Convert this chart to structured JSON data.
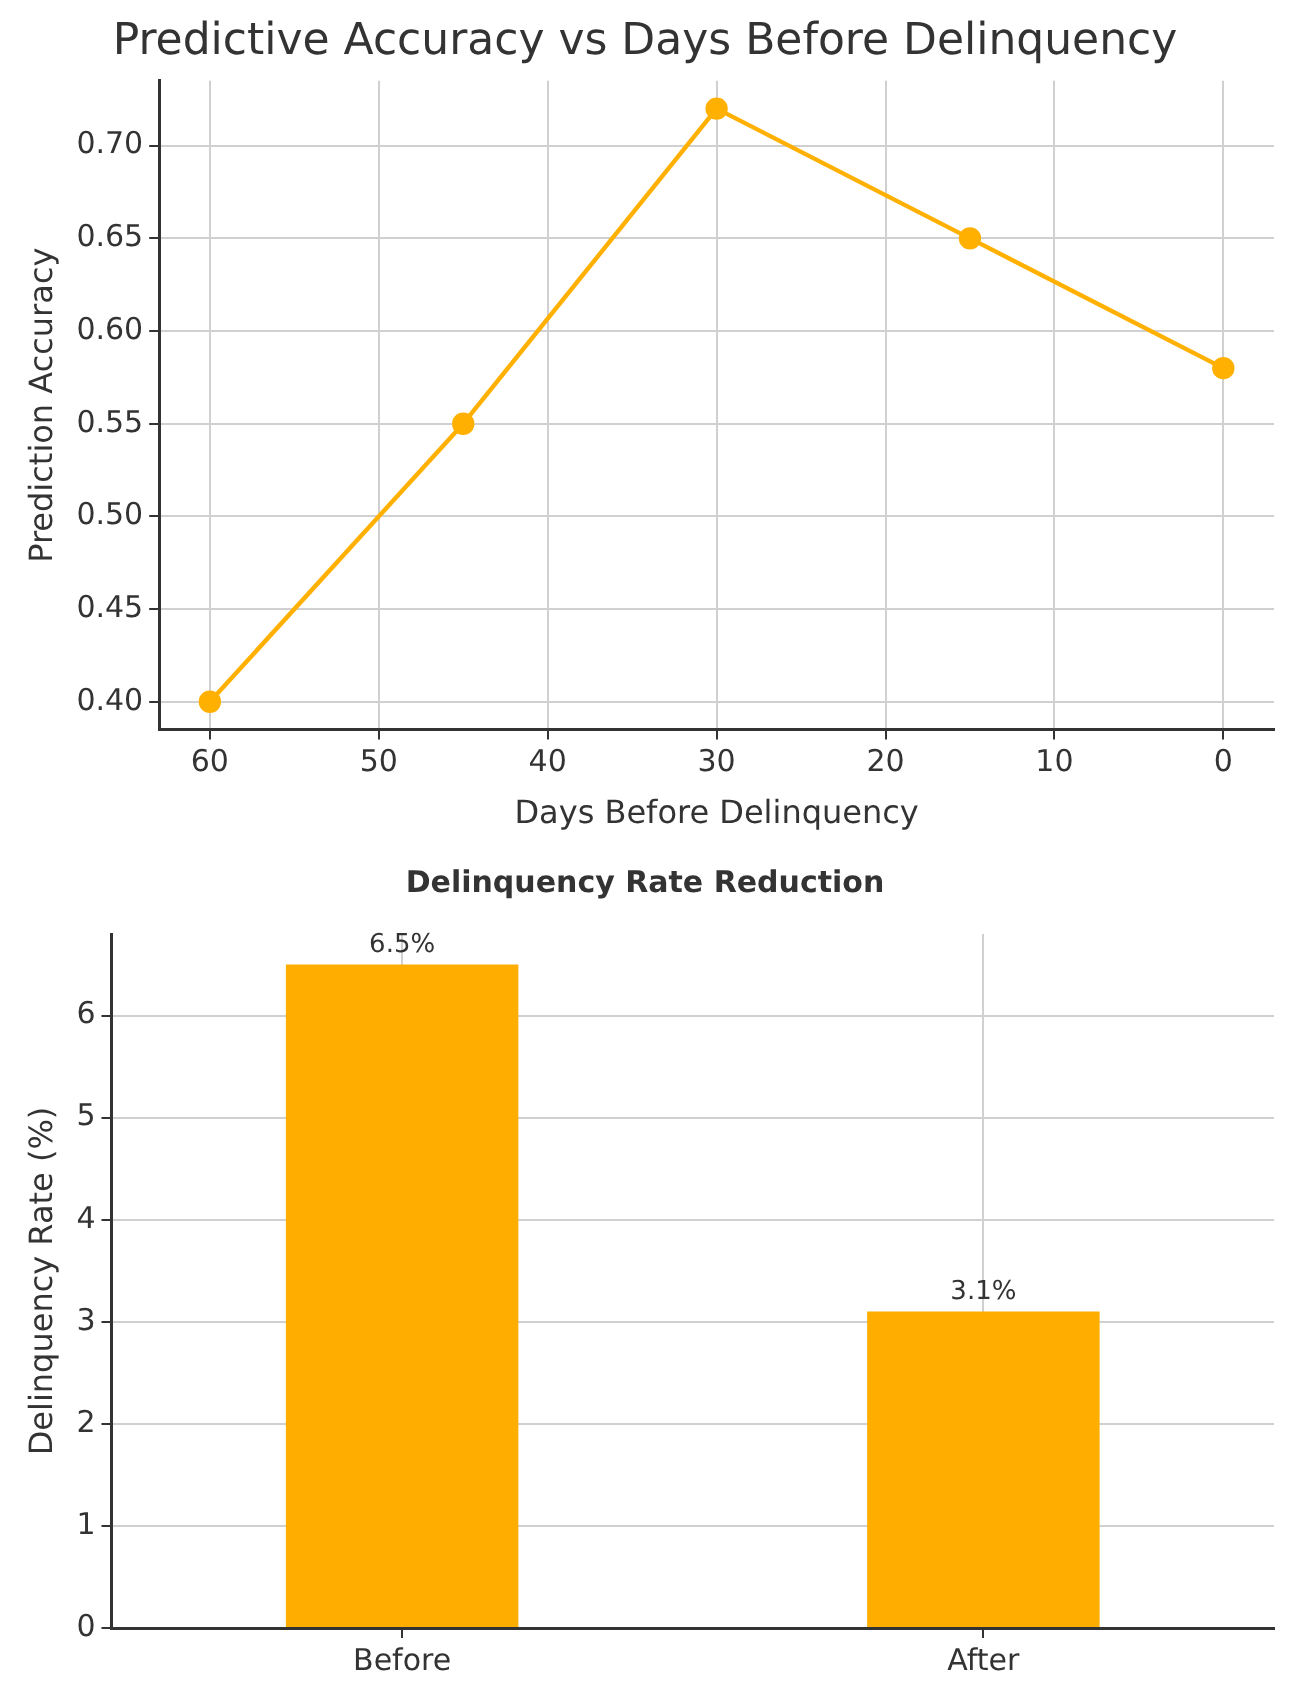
{
  "chart_data": [
    {
      "type": "line",
      "title": "Predictive Accuracy vs Days Before Delinquency",
      "xlabel": "Days Before Delinquency",
      "ylabel": "Prediction Accuracy",
      "x": [
        60,
        45,
        30,
        15,
        0
      ],
      "series": [
        {
          "color": "#ffb000",
          "values": [
            0.4,
            0.55,
            0.72,
            0.65,
            0.58
          ]
        }
      ],
      "xlim": [
        63,
        -3
      ],
      "xticks": [
        60,
        50,
        40,
        30,
        20,
        10,
        0
      ],
      "ylim": [
        0.385,
        0.735
      ],
      "yticks": [
        {
          "value": 0.4,
          "label": "0.40"
        },
        {
          "value": 0.45,
          "label": "0.45"
        },
        {
          "value": 0.5,
          "label": "0.50"
        },
        {
          "value": 0.55,
          "label": "0.55"
        },
        {
          "value": 0.6,
          "label": "0.60"
        },
        {
          "value": 0.65,
          "label": "0.65"
        },
        {
          "value": 0.7,
          "label": "0.70"
        }
      ],
      "grid": true,
      "marker": "circle",
      "line_style": "solid"
    },
    {
      "type": "bar",
      "title": "Delinquency Rate Reduction",
      "ylabel": "Delinquency Rate (%)",
      "categories": [
        "Before",
        "After"
      ],
      "series": [
        {
          "color": "#ffae00",
          "values": [
            6.5,
            3.1
          ]
        }
      ],
      "value_labels": [
        "6.5%",
        "3.1%"
      ],
      "ylim": [
        0,
        6.8
      ],
      "yticks": [
        0,
        1,
        2,
        3,
        4,
        5,
        6
      ],
      "grid": true
    }
  ]
}
